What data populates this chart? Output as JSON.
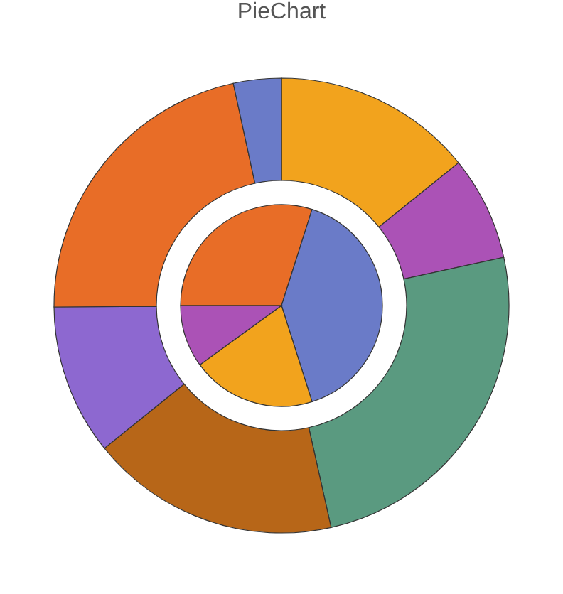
{
  "chart_data": {
    "type": "donut",
    "title": "PieChart",
    "series": [
      {
        "values": [
          14.2,
          7.4,
          24.9,
          17.7,
          10.7,
          21.7,
          3.4
        ],
        "colors": [
          "#f2a31d",
          "#ab52b6",
          "#5a9a80",
          "#b76618",
          "#8d68d0",
          "#e86d27",
          "#6a7bc8"
        ]
      },
      {
        "type": "pie",
        "values": [
          29.9,
          40.2,
          19.9,
          10.0
        ],
        "colors": [
          "#e86d27",
          "#6a7bc8",
          "#f2a31d",
          "#ab52b6"
        ]
      }
    ]
  }
}
